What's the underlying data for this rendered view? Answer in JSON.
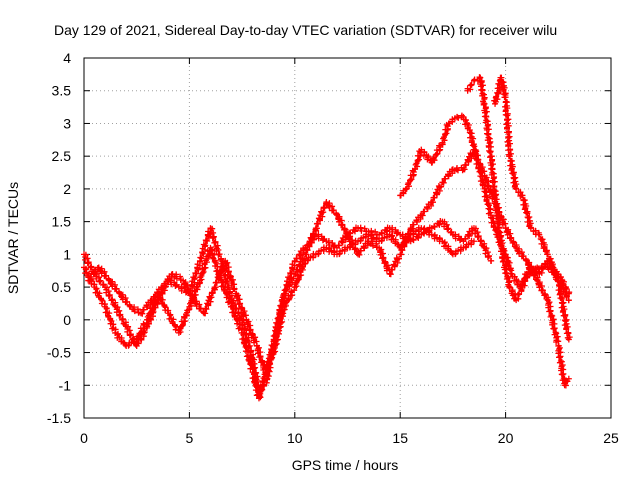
{
  "chart_data": {
    "type": "scatter",
    "title": "Day 129 of 2021, Sidereal Day-to-day VTEC variation (SDTVAR) for receiver wilu",
    "xlabel": "GPS time / hours",
    "ylabel": "SDTVAR / TECUs",
    "xlim": [
      0,
      25
    ],
    "ylim": [
      -1.5,
      4
    ],
    "xticks": [
      "0",
      "5",
      "10",
      "15",
      "20",
      "25"
    ],
    "yticks": [
      "-1.5",
      "-1",
      "-0.5",
      "0",
      "0.5",
      "1",
      "1.5",
      "2",
      "2.5",
      "3",
      "3.5",
      "4"
    ],
    "grid": true,
    "marker": "+",
    "color": "#ff0000",
    "series": [
      {
        "points": [
          [
            0,
            1.0
          ],
          [
            0.5,
            0.7
          ],
          [
            1.0,
            0.5
          ],
          [
            1.5,
            0.2
          ],
          [
            2.0,
            -0.1
          ],
          [
            2.5,
            -0.4
          ],
          [
            3.0,
            -0.1
          ],
          [
            3.5,
            0.3
          ],
          [
            4.0,
            0.6
          ],
          [
            4.5,
            0.5
          ],
          [
            5.0,
            0.4
          ],
          [
            5.5,
            0.9
          ],
          [
            6.0,
            1.4
          ],
          [
            6.5,
            0.9
          ],
          [
            7.0,
            0.3
          ],
          [
            7.5,
            0.0
          ],
          [
            8.0,
            -0.6
          ],
          [
            8.3,
            -1.1
          ],
          [
            8.7,
            -0.9
          ],
          [
            9.0,
            -0.3
          ],
          [
            9.5,
            0.4
          ],
          [
            10.0,
            0.9
          ],
          [
            10.5,
            1.1
          ],
          [
            11.0,
            1.3
          ],
          [
            11.5,
            1.2
          ],
          [
            12.0,
            1.1
          ],
          [
            12.5,
            1.3
          ],
          [
            13.0,
            1.4
          ],
          [
            13.5,
            1.35
          ],
          [
            14.0,
            1.3
          ],
          [
            14.5,
            1.4
          ],
          [
            15.0,
            1.3
          ],
          [
            15.5,
            1.2
          ],
          [
            16.0,
            1.3
          ],
          [
            16.5,
            1.4
          ],
          [
            17.0,
            1.5
          ],
          [
            17.5,
            1.3
          ],
          [
            18.0,
            1.2
          ],
          [
            18.5,
            1.4
          ],
          [
            19.0,
            1.1
          ],
          [
            19.3,
            0.9
          ]
        ]
      },
      {
        "points": [
          [
            0,
            0.8
          ],
          [
            0.5,
            0.5
          ],
          [
            1.0,
            0.2
          ],
          [
            1.5,
            -0.2
          ],
          [
            2.0,
            -0.4
          ],
          [
            2.5,
            -0.3
          ],
          [
            3.0,
            0.0
          ],
          [
            3.5,
            0.4
          ],
          [
            4.0,
            0.1
          ],
          [
            4.5,
            -0.2
          ],
          [
            5.0,
            0.2
          ],
          [
            5.5,
            0.6
          ],
          [
            6.0,
            1.1
          ],
          [
            6.5,
            0.6
          ],
          [
            7.0,
            0.2
          ],
          [
            7.5,
            -0.2
          ],
          [
            8.0,
            -0.8
          ],
          [
            8.3,
            -1.2
          ],
          [
            8.7,
            -0.7
          ],
          [
            9.0,
            -0.5
          ],
          [
            9.5,
            0.2
          ],
          [
            10.0,
            0.5
          ],
          [
            10.5,
            0.9
          ],
          [
            11.0,
            1.0
          ],
          [
            11.5,
            1.1
          ],
          [
            12.0,
            1.0
          ],
          [
            12.5,
            1.1
          ],
          [
            13.0,
            1.2
          ],
          [
            13.5,
            1.3
          ],
          [
            14.0,
            1.2
          ],
          [
            14.5,
            1.3
          ],
          [
            15.0,
            1.1
          ],
          [
            15.5,
            1.3
          ],
          [
            16.0,
            1.4
          ],
          [
            16.5,
            1.3
          ],
          [
            17.0,
            1.2
          ],
          [
            17.5,
            1.0
          ],
          [
            18.0,
            1.1
          ],
          [
            18.5,
            1.2
          ]
        ]
      },
      {
        "points": [
          [
            0.2,
            0.6
          ],
          [
            0.7,
            0.8
          ],
          [
            1.2,
            0.6
          ],
          [
            1.7,
            0.4
          ],
          [
            2.2,
            0.2
          ],
          [
            2.7,
            0.1
          ],
          [
            3.2,
            0.3
          ],
          [
            3.7,
            0.5
          ],
          [
            4.2,
            0.7
          ],
          [
            4.7,
            0.6
          ],
          [
            5.2,
            0.3
          ],
          [
            5.7,
            0.1
          ],
          [
            6.2,
            0.5
          ],
          [
            6.7,
            0.9
          ],
          [
            7.2,
            0.4
          ],
          [
            7.7,
            0.0
          ],
          [
            8.2,
            -0.4
          ],
          [
            8.6,
            -0.8
          ],
          [
            9.0,
            -0.4
          ],
          [
            9.5,
            0.4
          ],
          [
            10.0,
            0.7
          ],
          [
            10.5,
            1.0
          ],
          [
            11.0,
            1.4
          ],
          [
            11.5,
            1.8
          ],
          [
            12.0,
            1.6
          ],
          [
            12.5,
            1.3
          ],
          [
            13.0,
            1.0
          ],
          [
            13.5,
            1.2
          ],
          [
            14.0,
            1.1
          ],
          [
            14.5,
            0.7
          ],
          [
            15.0,
            1.0
          ],
          [
            15.5,
            1.4
          ],
          [
            16.0,
            1.6
          ],
          [
            16.5,
            1.8
          ],
          [
            17.0,
            2.1
          ],
          [
            17.5,
            2.3
          ],
          [
            18.0,
            2.3
          ],
          [
            18.5,
            2.6
          ],
          [
            19.0,
            2.2
          ],
          [
            19.5,
            1.8
          ],
          [
            20.0,
            1.4
          ],
          [
            20.5,
            1.1
          ],
          [
            21.0,
            0.9
          ],
          [
            21.5,
            0.6
          ],
          [
            22.0,
            0.3
          ],
          [
            22.5,
            -0.4
          ],
          [
            22.8,
            -1.0
          ],
          [
            23.0,
            -0.9
          ]
        ]
      },
      {
        "points": [
          [
            15,
            1.9
          ],
          [
            15.3,
            2.0
          ],
          [
            15.7,
            2.3
          ],
          [
            16.0,
            2.6
          ],
          [
            16.5,
            2.4
          ],
          [
            17.0,
            2.7
          ],
          [
            17.3,
            3.0
          ],
          [
            17.7,
            3.1
          ],
          [
            18.0,
            3.1
          ],
          [
            18.3,
            2.9
          ],
          [
            18.6,
            2.5
          ],
          [
            19.0,
            2.0
          ],
          [
            19.3,
            1.6
          ],
          [
            19.6,
            1.3
          ],
          [
            20.0,
            1.0
          ],
          [
            20.3,
            0.7
          ],
          [
            20.7,
            0.5
          ],
          [
            21.0,
            0.7
          ],
          [
            21.5,
            0.8
          ],
          [
            22.0,
            0.8
          ],
          [
            22.5,
            0.7
          ],
          [
            23.0,
            0.4
          ]
        ]
      },
      {
        "points": [
          [
            18.2,
            3.5
          ],
          [
            18.5,
            3.65
          ],
          [
            18.8,
            3.7
          ],
          [
            19.0,
            3.3
          ],
          [
            19.3,
            2.5
          ],
          [
            19.6,
            1.6
          ],
          [
            19.9,
            0.9
          ],
          [
            20.2,
            0.5
          ],
          [
            20.5,
            0.3
          ],
          [
            20.8,
            0.5
          ],
          [
            21.2,
            0.8
          ],
          [
            21.6,
            0.7
          ],
          [
            22.0,
            0.9
          ],
          [
            22.5,
            0.6
          ],
          [
            23.0,
            0.3
          ]
        ]
      },
      {
        "points": [
          [
            19.5,
            3.3
          ],
          [
            19.8,
            3.7
          ],
          [
            20.0,
            3.4
          ],
          [
            20.2,
            2.5
          ],
          [
            20.5,
            2.0
          ],
          [
            20.8,
            1.9
          ],
          [
            21.2,
            1.4
          ],
          [
            21.6,
            1.3
          ],
          [
            22.0,
            1.0
          ],
          [
            22.5,
            0.6
          ],
          [
            23.0,
            -0.3
          ]
        ]
      }
    ]
  }
}
